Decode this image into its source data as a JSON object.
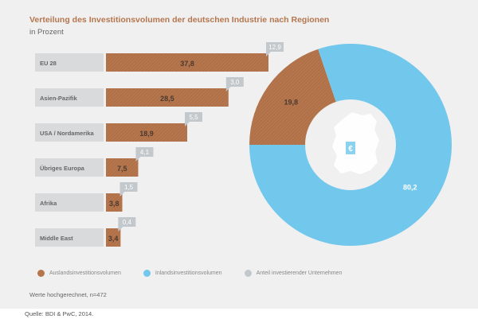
{
  "title": "Verteilung des Investitionsvolumen der deutschen Industrie nach Regionen",
  "subtitle": "in Prozent",
  "colors": {
    "ausland": "#b5764e",
    "inland": "#72c7ec",
    "anteil": "#c3c8cc",
    "label_bg": "#d9dadb"
  },
  "chart_data": [
    {
      "type": "bar",
      "orientation": "horizontal",
      "categories": [
        "EU 28",
        "Asien-Pazifik",
        "USA / Nordamerika",
        "Übriges Europa",
        "Afrika",
        "Middle East"
      ],
      "series": [
        {
          "name": "Auslandsinvestitionsvolumen",
          "values": [
            37.8,
            28.5,
            18.9,
            7.5,
            3.8,
            3.4
          ],
          "labels": [
            "37,8",
            "28,5",
            "18,9",
            "7,5",
            "3,8",
            "3,4"
          ]
        },
        {
          "name": "Anteil investierender Unternehmen",
          "values": [
            12.9,
            3.0,
            5.5,
            4.1,
            1.5,
            0.4
          ],
          "labels": [
            "12,9",
            "3,0",
            "5,5",
            "4,1",
            "1,5",
            "0,4"
          ]
        }
      ],
      "xlim": [
        0,
        37.8
      ]
    },
    {
      "type": "pie",
      "style": "donut",
      "categories": [
        "Auslandsinvestitionsvolumen",
        "Inlandsinvestitionsvolumen"
      ],
      "values": [
        19.8,
        80.2
      ],
      "labels": [
        "19,8",
        "80,2"
      ]
    }
  ],
  "legend": [
    {
      "label": "Auslandsinvestitionsvolumen",
      "color_key": "ausland"
    },
    {
      "label": "Inlandsinvestitionsvolumen",
      "color_key": "inland"
    },
    {
      "label": "Anteil investierender Unternehmen",
      "color_key": "anteil"
    }
  ],
  "note": "Werte hochgerechnet, n=472",
  "source": "Quelle: BDI & PwC, 2014.",
  "map_icon": "germany-map-euro-icon"
}
